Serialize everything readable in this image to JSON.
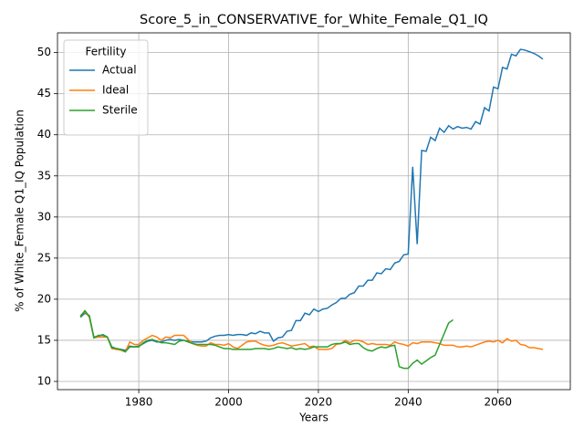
{
  "chart_data": {
    "type": "line",
    "title": "Score_5_in_CONSERVATIVE_for_White_Female_Q1_IQ",
    "xlabel": "Years",
    "ylabel": "% of White_Female Q1_IQ Population",
    "legend_title": "Fertility",
    "legend": "upper left",
    "grid": true,
    "x": [
      1967,
      1968,
      1969,
      1970,
      1971,
      1972,
      1973,
      1974,
      1975,
      1976,
      1977,
      1978,
      1979,
      1980,
      1981,
      1982,
      1983,
      1984,
      1985,
      1986,
      1987,
      1988,
      1989,
      1990,
      1991,
      1992,
      1993,
      1994,
      1995,
      1996,
      1997,
      1998,
      1999,
      2000,
      2001,
      2002,
      2003,
      2004,
      2005,
      2006,
      2007,
      2008,
      2009,
      2010,
      2011,
      2012,
      2013,
      2014,
      2015,
      2016,
      2017,
      2018,
      2019,
      2020,
      2021,
      2022,
      2023,
      2024,
      2025,
      2026,
      2027,
      2028,
      2029,
      2030,
      2031,
      2032,
      2033,
      2034,
      2035,
      2036,
      2037,
      2038,
      2039,
      2040,
      2041,
      2042,
      2043,
      2044,
      2045,
      2046,
      2047,
      2048,
      2049,
      2050,
      2051,
      2052,
      2053,
      2054,
      2055,
      2056,
      2057,
      2058,
      2059,
      2060,
      2061,
      2062,
      2063,
      2064,
      2065,
      2066,
      2067,
      2068,
      2069,
      2070
    ],
    "series": [
      {
        "name": "Actual",
        "color": "#1f77b4",
        "values": [
          17.8,
          18.3,
          18.0,
          15.4,
          15.5,
          15.7,
          15.4,
          14.2,
          14.0,
          13.9,
          13.8,
          14.3,
          14.2,
          14.3,
          14.6,
          14.9,
          15.0,
          14.8,
          14.8,
          15.0,
          15.1,
          15.0,
          15.1,
          15.0,
          14.9,
          14.8,
          14.8,
          14.8,
          14.9,
          15.3,
          15.5,
          15.6,
          15.6,
          15.7,
          15.6,
          15.7,
          15.7,
          15.6,
          15.9,
          15.8,
          16.1,
          15.9,
          15.9,
          14.9,
          15.3,
          15.4,
          16.1,
          16.2,
          17.4,
          17.4,
          18.3,
          18.1,
          18.8,
          18.5,
          18.8,
          18.9,
          19.3,
          19.6,
          20.1,
          20.1,
          20.6,
          20.8,
          21.6,
          21.6,
          22.3,
          22.3,
          23.2,
          23.1,
          23.7,
          23.6,
          24.4,
          24.6,
          25.4,
          25.5,
          36.1,
          26.7,
          38.1,
          38.0,
          39.7,
          39.3,
          40.8,
          40.3,
          41.1,
          40.7,
          41.0,
          40.8,
          40.9,
          40.7,
          41.6,
          41.3,
          43.3,
          42.9,
          45.8,
          45.6,
          48.2,
          48.0,
          49.8,
          49.6,
          50.4,
          50.3,
          50.1,
          49.9,
          49.6,
          49.2
        ]
      },
      {
        "name": "Ideal",
        "color": "#ff7f0e",
        "values": [
          18.0,
          18.5,
          17.8,
          15.3,
          15.4,
          15.4,
          15.4,
          14.0,
          13.9,
          13.8,
          13.6,
          14.8,
          14.5,
          14.5,
          15.0,
          15.3,
          15.6,
          15.4,
          15.0,
          15.4,
          15.3,
          15.6,
          15.6,
          15.6,
          15.1,
          14.6,
          14.4,
          14.3,
          14.3,
          14.7,
          14.5,
          14.5,
          14.4,
          14.6,
          14.2,
          14.0,
          14.4,
          14.8,
          14.9,
          14.9,
          14.6,
          14.4,
          14.3,
          14.4,
          14.6,
          14.7,
          14.5,
          14.3,
          14.4,
          14.5,
          14.6,
          14.2,
          14.3,
          13.9,
          13.9,
          13.9,
          14.0,
          14.5,
          14.6,
          15.0,
          14.7,
          15.0,
          15.0,
          14.8,
          14.5,
          14.6,
          14.5,
          14.5,
          14.5,
          14.4,
          14.8,
          14.6,
          14.5,
          14.3,
          14.7,
          14.6,
          14.8,
          14.8,
          14.8,
          14.7,
          14.6,
          14.4,
          14.4,
          14.4,
          14.2,
          14.2,
          14.3,
          14.2,
          14.4,
          14.6,
          14.8,
          14.9,
          14.8,
          15.0,
          14.7,
          15.2,
          14.9,
          15.0,
          14.5,
          14.4,
          14.1,
          14.1,
          14.0,
          13.9
        ]
      },
      {
        "name": "Sterile",
        "color": "#2ca02c",
        "values": [
          17.9,
          18.6,
          17.9,
          15.3,
          15.6,
          15.6,
          15.4,
          14.1,
          14.0,
          13.9,
          13.6,
          14.2,
          14.2,
          14.2,
          14.7,
          15.0,
          15.1,
          14.9,
          14.7,
          14.7,
          14.6,
          14.5,
          14.9,
          15.0,
          14.8,
          14.6,
          14.5,
          14.5,
          14.5,
          14.5,
          14.4,
          14.2,
          14.0,
          14.0,
          13.9,
          13.9,
          13.9,
          13.9,
          13.9,
          14.0,
          14.0,
          14.0,
          13.9,
          14.0,
          14.2,
          14.1,
          14.0,
          14.1,
          13.9,
          14.0,
          13.9,
          14.0,
          14.2,
          14.2,
          14.2,
          14.2,
          14.5,
          14.6,
          14.6,
          14.8,
          14.5,
          14.6,
          14.6,
          14.1,
          13.8,
          13.7,
          14.0,
          14.2,
          14.1,
          14.3,
          14.4,
          11.8,
          11.6,
          11.6,
          12.2,
          12.6,
          12.1,
          12.5,
          12.9,
          13.2,
          14.5,
          15.8,
          17.1,
          17.5,
          null,
          null,
          null,
          null,
          null,
          null,
          null,
          null,
          null,
          null,
          null,
          null,
          null,
          null,
          null,
          null,
          null,
          null,
          null,
          null
        ]
      }
    ],
    "xlim": [
      1961.9,
      2076.1
    ],
    "xticks": [
      1980,
      2000,
      2020,
      2040,
      2060
    ],
    "ylim": [
      9.0,
      52.4
    ],
    "yticks": [
      10,
      15,
      20,
      25,
      30,
      35,
      40,
      45,
      50
    ]
  }
}
